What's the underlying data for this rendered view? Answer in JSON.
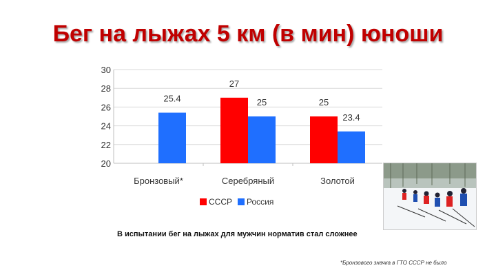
{
  "slide": {
    "title": "Бег на лыжах 5 км (в мин) юноши",
    "caption": "В испытании бег на лыжах для мужчин норматив стал сложнее",
    "footnote": "*Бронзового значка в ГТО СССР не было"
  },
  "colors": {
    "title": "#c00000",
    "ussr": "#ff0000",
    "russia": "#1f6fff",
    "grid": "#d9d9d9"
  },
  "chart_data": {
    "type": "bar",
    "title": "",
    "xlabel": "",
    "ylabel": "",
    "categories": [
      "Бронзовый*",
      "Серебряный",
      "Золотой"
    ],
    "series": [
      {
        "name": "СССР",
        "values": [
          null,
          27,
          25
        ],
        "labels": [
          "",
          "27",
          "25"
        ]
      },
      {
        "name": "Россия",
        "values": [
          25.4,
          25,
          23.4
        ],
        "labels": [
          "25.4",
          "25",
          "23.4"
        ]
      }
    ],
    "ylim": [
      20,
      30
    ],
    "yticks": [
      20,
      22,
      24,
      26,
      28,
      30
    ],
    "grid": true,
    "legend": "bottom"
  },
  "photo": {
    "icon": "skiers-photo"
  }
}
